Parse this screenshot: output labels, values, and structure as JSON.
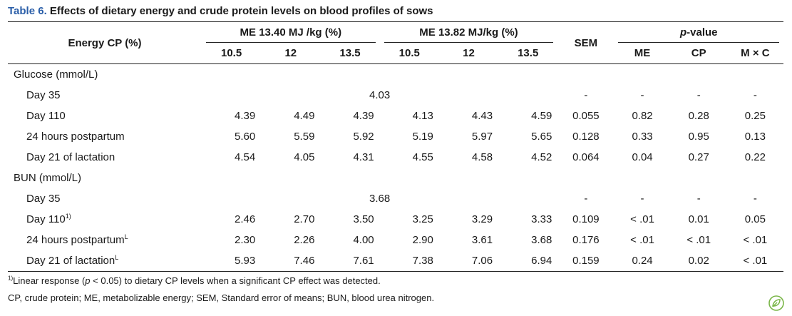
{
  "caption": {
    "table_number": "Table 6.",
    "title": "Effects of dietary energy and crude protein levels on blood profiles of sows"
  },
  "header": {
    "row_label": "Energy CP (%)",
    "group1": "ME 13.40 MJ /kg (%)",
    "group2": "ME 13.82 MJ/kg (%)",
    "sem": "SEM",
    "pvalue_italic": "p",
    "pvalue_rest": "-value",
    "levels": [
      "10.5",
      "12",
      "13.5",
      "10.5",
      "12",
      "13.5"
    ],
    "pcols": [
      "ME",
      "CP",
      "M × C"
    ]
  },
  "sections": [
    {
      "title": "Glucose (mmol/L)",
      "rows": [
        {
          "label": "Day 35",
          "sup": "",
          "pooled": "4.03",
          "sem": "-",
          "p": [
            "-",
            "-",
            "-"
          ]
        },
        {
          "label": "Day 110",
          "sup": "",
          "values": [
            "4.39",
            "4.49",
            "4.39",
            "4.13",
            "4.43",
            "4.59"
          ],
          "sem": "0.055",
          "p": [
            "0.82",
            "0.28",
            "0.25"
          ]
        },
        {
          "label": "24 hours postpartum",
          "sup": "",
          "values": [
            "5.60",
            "5.59",
            "5.92",
            "5.19",
            "5.97",
            "5.65"
          ],
          "sem": "0.128",
          "p": [
            "0.33",
            "0.95",
            "0.13"
          ]
        },
        {
          "label": "Day 21 of lactation",
          "sup": "",
          "values": [
            "4.54",
            "4.05",
            "4.31",
            "4.55",
            "4.58",
            "4.52"
          ],
          "sem": "0.064",
          "p": [
            "0.04",
            "0.27",
            "0.22"
          ]
        }
      ]
    },
    {
      "title": "BUN (mmol/L)",
      "rows": [
        {
          "label": "Day 35",
          "sup": "",
          "pooled": "3.68",
          "sem": "-",
          "p": [
            "-",
            "-",
            "-"
          ]
        },
        {
          "label": "Day 110",
          "sup": "1)",
          "values": [
            "2.46",
            "2.70",
            "3.50",
            "3.25",
            "3.29",
            "3.33"
          ],
          "sem": "0.109",
          "p": [
            "< .01",
            "0.01",
            "0.05"
          ]
        },
        {
          "label": "24 hours postpartum",
          "sup": "L",
          "values": [
            "2.30",
            "2.26",
            "4.00",
            "2.90",
            "3.61",
            "3.68"
          ],
          "sem": "0.176",
          "p": [
            "< .01",
            "< .01",
            "< .01"
          ]
        },
        {
          "label": "Day 21 of lactation",
          "sup": "L",
          "values": [
            "5.93",
            "7.46",
            "7.61",
            "7.38",
            "7.06",
            "6.94"
          ],
          "sem": "0.159",
          "p": [
            "0.24",
            "0.02",
            "< .01"
          ]
        }
      ]
    }
  ],
  "footnotes": {
    "note1_sup": "1)",
    "note1_before": "Linear response (",
    "note1_italic": "p",
    "note1_after": " < 0.05) to dietary CP levels when a significant CP effect was detected.",
    "note2": "CP, crude protein; ME, metabolizable energy; SEM, Standard error of means; BUN, blood urea nitrogen."
  },
  "icons": {
    "corner": "leaf-badge-icon"
  },
  "colors": {
    "accent": "#2a5ea8",
    "badge": "#7ab648"
  }
}
